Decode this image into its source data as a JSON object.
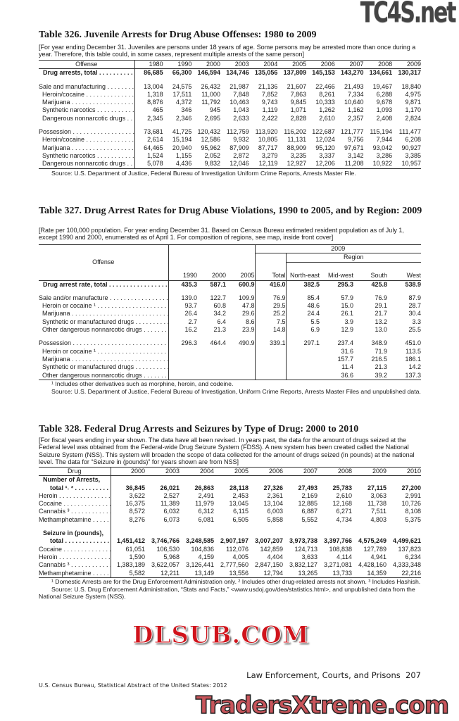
{
  "watermarks": {
    "top": "TC4S.net",
    "middle": "DLSUB.COM",
    "bottom": "TradersXtreme.com"
  },
  "table326": {
    "title": "Table 326. Juvenile Arrests for Drug Abuse Offenses: 1980 to 2009",
    "note": "[For year ending December 31. Juveniles are persons under 18 years of age. Some persons may be arrested more than once during a year. Therefore, this table could, in some cases, represent multiple arrests of the same person]",
    "first_header": "Offense",
    "columns": [
      "1980",
      "1990",
      "2000",
      "2003",
      "2004",
      "2005",
      "2006",
      "2007",
      "2008",
      "2009"
    ],
    "groups": [
      [
        {
          "label": "Drug arrests, total",
          "bold": true,
          "values": [
            "86,685",
            "66,300",
            "146,594",
            "134,746",
            "135,056",
            "137,809",
            "145,153",
            "143,270",
            "134,661",
            "130,317"
          ]
        }
      ],
      [
        {
          "label": "Sale and manufacturing",
          "values": [
            "13,004",
            "24,575",
            "26,432",
            "21,987",
            "21,136",
            "21,607",
            "22,466",
            "21,493",
            "19,467",
            "18,840"
          ]
        },
        {
          "label": "Heroin/cocaine",
          "indent": true,
          "values": [
            "1,318",
            "17,511",
            "11,000",
            "7,848",
            "7,852",
            "7,863",
            "8,261",
            "7,334",
            "6,288",
            "4,975"
          ]
        },
        {
          "label": "Marijuana",
          "indent": true,
          "values": [
            "8,876",
            "4,372",
            "11,792",
            "10,463",
            "9,743",
            "9,845",
            "10,333",
            "10,640",
            "9,678",
            "9,871"
          ]
        },
        {
          "label": "Synthetic narcotics",
          "indent": true,
          "values": [
            "465",
            "346",
            "945",
            "1,043",
            "1,119",
            "1,071",
            "1,262",
            "1,162",
            "1,093",
            "1,170"
          ]
        },
        {
          "label": "Dangerous nonnarcotic drugs",
          "indent": true,
          "values": [
            "2,345",
            "2,346",
            "2,695",
            "2,633",
            "2,422",
            "2,828",
            "2,610",
            "2,357",
            "2,408",
            "2,824"
          ]
        }
      ],
      [
        {
          "label": "Possession",
          "values": [
            "73,681",
            "41,725",
            "120,432",
            "112,759",
            "113,920",
            "116,202",
            "122,687",
            "121,777",
            "115,194",
            "111,477"
          ]
        },
        {
          "label": "Heroin/cocaine",
          "indent": true,
          "values": [
            "2,614",
            "15,194",
            "12,586",
            "9,932",
            "10,805",
            "11,131",
            "12,024",
            "9,756",
            "7,944",
            "6,208"
          ]
        },
        {
          "label": "Marijuana",
          "indent": true,
          "values": [
            "64,465",
            "20,940",
            "95,962",
            "87,909",
            "87,717",
            "88,909",
            "95,120",
            "97,671",
            "93,042",
            "90,927"
          ]
        },
        {
          "label": "Synthetic narcotics",
          "indent": true,
          "values": [
            "1,524",
            "1,155",
            "2,052",
            "2,872",
            "3,279",
            "3,235",
            "3,337",
            "3,142",
            "3,286",
            "3,385"
          ]
        },
        {
          "label": "Dangerous nonnarcotic drugs",
          "indent": true,
          "values": [
            "5,078",
            "4,436",
            "9,832",
            "12,046",
            "12,119",
            "12,927",
            "12,206",
            "11,208",
            "10,922",
            "10,957"
          ]
        }
      ]
    ],
    "source": "Source: U.S. Department of Justice, Federal Bureau of Investigation Uniform Crime Reports, Arrests Master File."
  },
  "table327": {
    "title": "Table 327. Drug Arrest Rates for Drug Abuse Violations, 1990 to 2005, and by Region: 2009",
    "note": "[Rate per 100,000 population. For year ending December 31. Based on Census Bureau estimated resident population as of July 1, except 1990 and 2000, enumerated as of April 1. For composition of regions, see map, inside front cover]",
    "first_header": "Offense",
    "year_group": "2009",
    "region_group": "Region",
    "columns": [
      "1990",
      "2000",
      "2005",
      "Total",
      "North-east",
      "Mid-west",
      "South",
      "West"
    ],
    "groups": [
      [
        {
          "label": "Drug arrest rate, total",
          "bold": true,
          "values": [
            "435.3",
            "587.1",
            "600.9",
            "416.0",
            "382.5",
            "295.3",
            "425.8",
            "538.9"
          ]
        }
      ],
      [
        {
          "label": "Sale and/or manufacture",
          "values": [
            "139.0",
            "122.7",
            "109.9",
            "76.9",
            "85.4",
            "57.9",
            "76.9",
            "87.9"
          ]
        },
        {
          "label": "Heroin or cocaine ¹",
          "indent": true,
          "values": [
            "93.7",
            "60.8",
            "47.8",
            "29.5",
            "48.6",
            "15.0",
            "29.1",
            "28.7"
          ]
        },
        {
          "label": "Marijuana",
          "indent": true,
          "values": [
            "26.4",
            "34.2",
            "29.6",
            "25.2",
            "24.4",
            "26.1",
            "21.7",
            "30.4"
          ]
        },
        {
          "label": "Synthetic or manufactured drugs",
          "indent": true,
          "values": [
            "2.7",
            "6.4",
            "8.6",
            "7.5",
            "5.5",
            "3.9",
            "13.2",
            "3.3"
          ]
        },
        {
          "label": "Other dangerous nonnarcotic drugs",
          "indent": true,
          "values": [
            "16.2",
            "21.3",
            "23.9",
            "14.8",
            "6.9",
            "12.9",
            "13.0",
            "25.5"
          ]
        }
      ],
      [
        {
          "label": "Possession",
          "values": [
            "296.3",
            "464.4",
            "490.9",
            "339.1",
            "297.1",
            "237.4",
            "348.9",
            "451.0"
          ]
        },
        {
          "label": "Heroin or cocaine ¹",
          "indent": true,
          "values": [
            "",
            "",
            "",
            "",
            "",
            "31.6",
            "71.9",
            "113.5"
          ]
        },
        {
          "label": "Marijuana",
          "indent": true,
          "values": [
            "",
            "",
            "",
            "",
            "",
            "157.7",
            "216.5",
            "186.1"
          ]
        },
        {
          "label": "Synthetic or manufactured drugs",
          "indent": true,
          "values": [
            "",
            "",
            "",
            "",
            "",
            "11.4",
            "21.3",
            "14.2"
          ]
        },
        {
          "label": "Other dangerous nonnarcotic drugs",
          "indent": true,
          "values": [
            "",
            "",
            "",
            "",
            "",
            "36.6",
            "39.2",
            "137.3"
          ]
        }
      ]
    ],
    "footnote": "¹ Includes other derivatives such as morphine, heroin, and codeine.",
    "source": "Source: U.S. Department of Justice, Federal Bureau of Investigation, Uniform Crime Reports, Arrests Master Files and unpublished data."
  },
  "table328": {
    "title": "Table 328. Federal Drug Arrests and Seizures by Type of Drug: 2000 to 2010",
    "note": "[For fiscal years ending in year shown. The data have all been revised. In years past, the data for the amount of drugs seized at the Federal level was obtained from the Federal-wide Drug Seizure System (FDSS). A new system has been created called the National Seizure System (NSS). This system will broaden the scope of data collected for the amount of drugs seized (in pounds) at the national level.  The data for “Seizure in (pounds)” for years shown are from NSS]",
    "first_header": "Drug",
    "columns": [
      "2000",
      "2003",
      "2004",
      "2005",
      "2006",
      "2007",
      "2008",
      "2009",
      "2010"
    ],
    "groups": [
      [
        {
          "label": "Number of Arrests,",
          "bold": true,
          "heading": true,
          "values": []
        },
        {
          "label": "total ¹˒ ²",
          "bold": true,
          "cont": true,
          "values": [
            "36,845",
            "26,021",
            "26,863",
            "28,118",
            "27,326",
            "27,493",
            "25,783",
            "27,115",
            "27,200"
          ]
        },
        {
          "label": "Heroin",
          "values": [
            "3,622",
            "2,527",
            "2,491",
            "2,453",
            "2,361",
            "2,169",
            "2,610",
            "3,063",
            "2,991"
          ]
        },
        {
          "label": "Cocaine",
          "values": [
            "16,375",
            "11,389",
            "11,979",
            "13,045",
            "13,104",
            "12,885",
            "12,168",
            "11,738",
            "10,726"
          ]
        },
        {
          "label": "Cannabis ³",
          "values": [
            "8,572",
            "6,032",
            "6,312",
            "6,115",
            "6,003",
            "6,887",
            "6,271",
            "7,511",
            "8,108"
          ]
        },
        {
          "label": "Methamphetamine",
          "values": [
            "8,276",
            "6,073",
            "6,081",
            "6,505",
            "5,858",
            "5,552",
            "4,734",
            "4,803",
            "5,375"
          ]
        }
      ],
      [
        {
          "label": "Seizure in (pounds),",
          "bold": true,
          "heading": true,
          "values": []
        },
        {
          "label": "total",
          "bold": true,
          "cont": true,
          "values": [
            "1,451,412",
            "3,746,766",
            "3,248,585",
            "2,907,197",
            "3,007,207",
            "3,973,738",
            "3,397,766",
            "4,575,249",
            "4,499,621"
          ]
        },
        {
          "label": "Cocaine",
          "values": [
            "61,051",
            "106,530",
            "104,836",
            "112,076",
            "142,859",
            "124,713",
            "108,838",
            "127,789",
            "137,823"
          ]
        },
        {
          "label": "Heroin",
          "values": [
            "1,590",
            "5,968",
            "4,159",
            "4,005",
            "4,404",
            "3,633",
            "4,114",
            "4,941",
            "6,234"
          ]
        },
        {
          "label": "Cannabis ³",
          "values": [
            "1,383,189",
            "3,622,057",
            "3,126,441",
            "2,777,560",
            "2,847,150",
            "3,832,127",
            "3,271,081",
            "4,428,160",
            "4,333,348"
          ]
        },
        {
          "label": "Methamphetamine",
          "values": [
            "5,582",
            "12,211",
            "13,149",
            "13,556",
            "12,794",
            "13,265",
            "13,733",
            "14,359",
            "22,216"
          ]
        }
      ]
    ],
    "footnote": "¹ Domestic Arrests are for the Drug Enforcement Administration only. ² Includes other drug-related arrests not shown. ³ Includes Hashish.",
    "source": "Source: U.S. Drug Enforcement Administration, “Stats and Facts,” <www.usdoj.gov/dea/statistics.html>, and unpublished data from the National Seizure System (NSS)."
  },
  "footer": {
    "chapter": "Law Enforcement, Courts, and Prisons",
    "page": "207",
    "publication": "U.S. Census Bureau, Statistical Abstract of the United States: 2012"
  }
}
